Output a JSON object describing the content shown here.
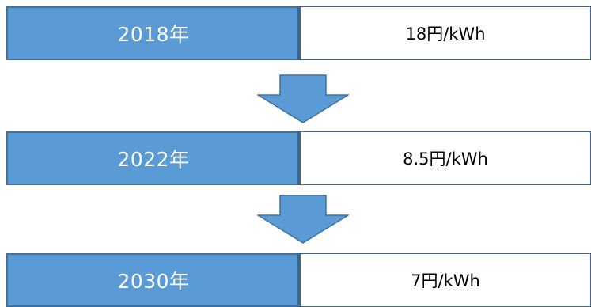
{
  "colors": {
    "year_fill": "#5b9bd5",
    "year_border": "#41719c",
    "arrow_fill": "#5b9bd5",
    "price_border": "#3a6691"
  },
  "timeline": [
    {
      "year": "2018年",
      "price": "18円/kWh"
    },
    {
      "year": "2022年",
      "price": "8.5円/kWh"
    },
    {
      "year": "2030年",
      "price": "7円/kWh"
    }
  ],
  "arrows": [
    "down-arrow-icon",
    "down-arrow-icon"
  ]
}
